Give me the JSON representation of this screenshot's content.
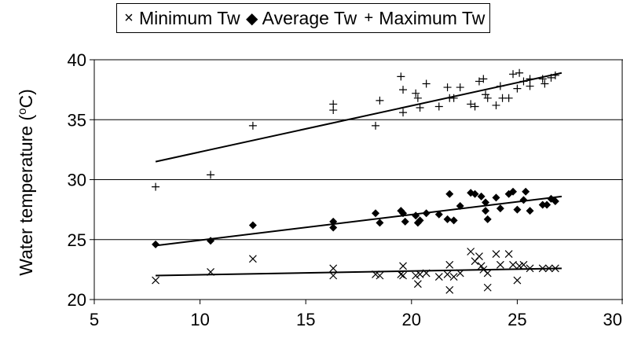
{
  "chart_data": {
    "type": "scatter",
    "title": "",
    "xlabel": "",
    "ylabel_main": "Water temperature (",
    "ylabel_sup": "o",
    "ylabel_end": "C)",
    "xlim": [
      5,
      30
    ],
    "ylim": [
      20,
      40
    ],
    "xticks": [
      "5",
      "10",
      "15",
      "20",
      "25",
      "30"
    ],
    "yticks": [
      "20",
      "25",
      "30",
      "35",
      "40"
    ],
    "grid": "horizontal",
    "legend_position": "top",
    "series": [
      {
        "name": "Minimum Tw",
        "marker": "x",
        "color": "#000000",
        "points": [
          [
            7.9,
            21.6
          ],
          [
            10.5,
            22.3
          ],
          [
            12.5,
            23.4
          ],
          [
            16.3,
            22.6
          ],
          [
            16.3,
            22.0
          ],
          [
            18.3,
            22.1
          ],
          [
            18.5,
            22.0
          ],
          [
            19.5,
            22.1
          ],
          [
            19.6,
            22.8
          ],
          [
            19.6,
            22.0
          ],
          [
            20.2,
            22.0
          ],
          [
            20.3,
            21.3
          ],
          [
            20.4,
            22.1
          ],
          [
            20.7,
            22.2
          ],
          [
            21.3,
            21.9
          ],
          [
            21.7,
            22.1
          ],
          [
            21.8,
            20.8
          ],
          [
            21.8,
            22.9
          ],
          [
            22.0,
            21.9
          ],
          [
            22.3,
            22.2
          ],
          [
            22.8,
            24.0
          ],
          [
            23.0,
            23.2
          ],
          [
            23.2,
            23.6
          ],
          [
            23.3,
            22.8
          ],
          [
            23.4,
            22.5
          ],
          [
            23.6,
            22.2
          ],
          [
            23.6,
            21.0
          ],
          [
            24.0,
            23.8
          ],
          [
            24.2,
            22.9
          ],
          [
            24.6,
            23.8
          ],
          [
            24.8,
            22.9
          ],
          [
            25.0,
            21.6
          ],
          [
            25.1,
            22.8
          ],
          [
            25.3,
            22.9
          ],
          [
            25.6,
            22.6
          ],
          [
            26.2,
            22.6
          ],
          [
            26.5,
            22.6
          ],
          [
            26.8,
            22.6
          ]
        ]
      },
      {
        "name": "Average Tw",
        "marker": "diamond",
        "color": "#000000",
        "points": [
          [
            7.9,
            24.6
          ],
          [
            10.5,
            24.9
          ],
          [
            12.5,
            26.2
          ],
          [
            16.3,
            26.0
          ],
          [
            16.3,
            26.5
          ],
          [
            18.3,
            27.2
          ],
          [
            18.5,
            26.4
          ],
          [
            19.5,
            27.4
          ],
          [
            19.6,
            27.2
          ],
          [
            19.7,
            26.5
          ],
          [
            20.2,
            27.0
          ],
          [
            20.3,
            26.4
          ],
          [
            20.4,
            26.6
          ],
          [
            20.7,
            27.2
          ],
          [
            21.3,
            27.1
          ],
          [
            21.7,
            26.7
          ],
          [
            21.8,
            28.8
          ],
          [
            22.0,
            26.6
          ],
          [
            22.3,
            27.8
          ],
          [
            22.8,
            28.9
          ],
          [
            23.0,
            28.8
          ],
          [
            23.3,
            28.6
          ],
          [
            23.5,
            27.4
          ],
          [
            23.5,
            28.1
          ],
          [
            23.6,
            26.7
          ],
          [
            24.0,
            28.5
          ],
          [
            24.2,
            27.6
          ],
          [
            24.6,
            28.8
          ],
          [
            24.8,
            29.0
          ],
          [
            25.0,
            27.5
          ],
          [
            25.3,
            28.3
          ],
          [
            25.4,
            29.0
          ],
          [
            25.6,
            27.4
          ],
          [
            26.2,
            27.9
          ],
          [
            26.4,
            27.9
          ],
          [
            26.6,
            28.4
          ],
          [
            26.8,
            28.2
          ]
        ]
      },
      {
        "name": "Maximum Tw",
        "marker": "plus",
        "color": "#000000",
        "points": [
          [
            7.9,
            29.4
          ],
          [
            10.5,
            30.4
          ],
          [
            12.5,
            34.5
          ],
          [
            16.3,
            36.3
          ],
          [
            16.3,
            35.8
          ],
          [
            18.3,
            34.5
          ],
          [
            18.5,
            36.6
          ],
          [
            19.5,
            38.6
          ],
          [
            19.6,
            37.5
          ],
          [
            19.6,
            35.6
          ],
          [
            20.2,
            37.2
          ],
          [
            20.3,
            36.8
          ],
          [
            20.4,
            36.0
          ],
          [
            20.7,
            38.0
          ],
          [
            21.3,
            36.1
          ],
          [
            21.7,
            37.7
          ],
          [
            21.8,
            36.8
          ],
          [
            22.0,
            36.8
          ],
          [
            22.3,
            37.7
          ],
          [
            22.8,
            36.3
          ],
          [
            23.0,
            36.1
          ],
          [
            23.2,
            38.2
          ],
          [
            23.4,
            38.4
          ],
          [
            23.5,
            37.1
          ],
          [
            23.6,
            36.8
          ],
          [
            24.0,
            36.2
          ],
          [
            24.2,
            37.8
          ],
          [
            24.3,
            36.8
          ],
          [
            24.6,
            36.8
          ],
          [
            24.8,
            38.8
          ],
          [
            25.0,
            37.6
          ],
          [
            25.1,
            38.9
          ],
          [
            25.3,
            38.2
          ],
          [
            25.6,
            38.4
          ],
          [
            25.6,
            37.8
          ],
          [
            26.2,
            38.4
          ],
          [
            26.3,
            38.0
          ],
          [
            26.6,
            38.5
          ],
          [
            26.8,
            38.7
          ]
        ]
      }
    ],
    "trendlines": [
      {
        "series": "Minimum Tw",
        "x": [
          7.9,
          27.1
        ],
        "y": [
          22.0,
          22.6
        ]
      },
      {
        "series": "Average Tw",
        "x": [
          7.9,
          27.1
        ],
        "y": [
          24.5,
          28.6
        ]
      },
      {
        "series": "Maximum Tw",
        "x": [
          7.9,
          27.1
        ],
        "y": [
          31.5,
          38.9
        ]
      }
    ]
  }
}
